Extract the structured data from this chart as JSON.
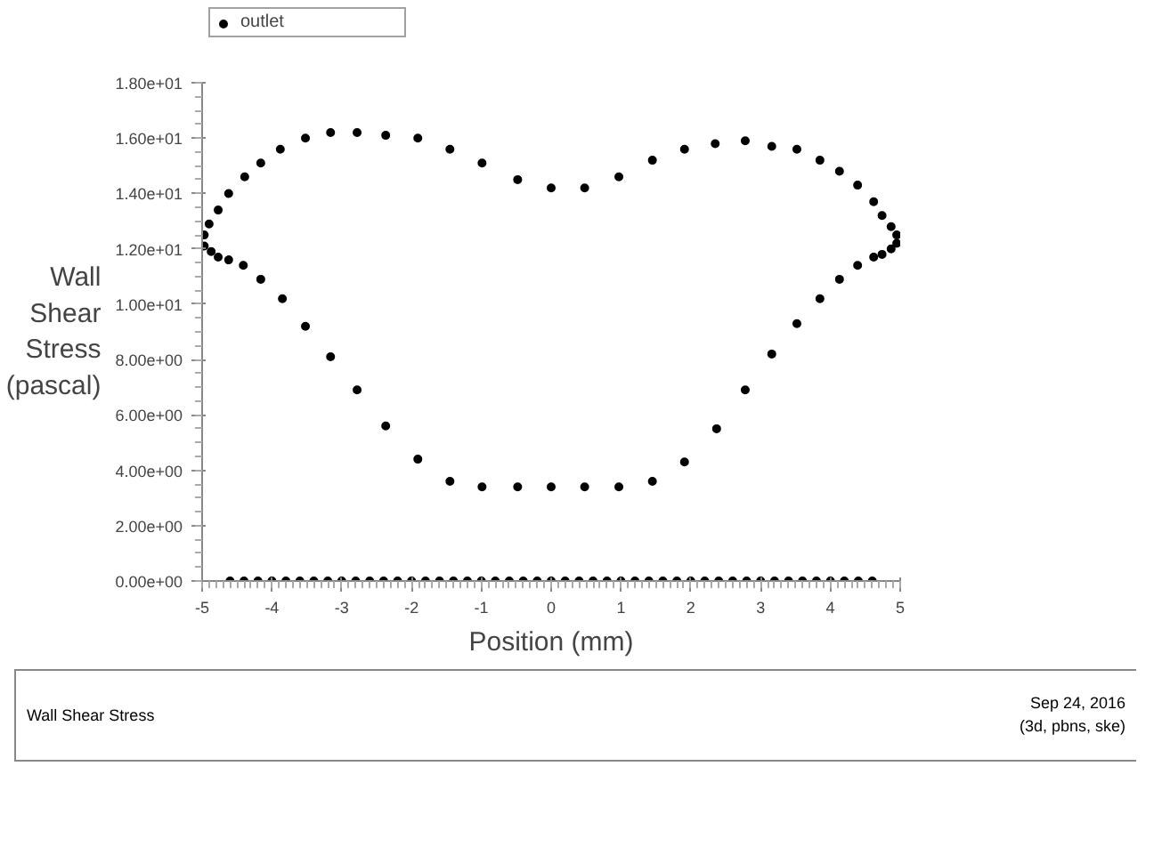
{
  "chart_data": {
    "type": "scatter",
    "xlabel": "Position (mm)",
    "ylabel": "Wall Shear Stress (pascal)",
    "xlim": [
      -5,
      5
    ],
    "ylim": [
      0,
      18
    ],
    "xticks": [
      -5,
      -4,
      -3,
      -2,
      -1,
      0,
      1,
      2,
      3,
      4,
      5
    ],
    "yticks": [
      {
        "value": 0,
        "label": "0.00e+00"
      },
      {
        "value": 2,
        "label": "2.00e+00"
      },
      {
        "value": 4,
        "label": "4.00e+00"
      },
      {
        "value": 6,
        "label": "6.00e+00"
      },
      {
        "value": 8,
        "label": "8.00e+00"
      },
      {
        "value": 10,
        "label": "1.00e+01"
      },
      {
        "value": 12,
        "label": "1.20e+01"
      },
      {
        "value": 14,
        "label": "1.40e+01"
      },
      {
        "value": 16,
        "label": "1.60e+01"
      },
      {
        "value": 18,
        "label": "1.80e+01"
      }
    ],
    "grid": false,
    "legend": "top left",
    "marker": "circle",
    "annotations": [
      "Wall Shear Stress",
      "Sep 24, 2016",
      "(3d, pbns, ske)"
    ],
    "series": [
      {
        "name": "outlet",
        "color": "#000000",
        "x": [
          -4.97,
          -4.9,
          -4.77,
          -4.62,
          -4.39,
          -4.16,
          -3.88,
          -3.52,
          -3.16,
          -2.78,
          -2.37,
          -1.91,
          -1.45,
          -0.99,
          -0.48,
          0.0,
          0.48,
          0.97,
          1.45,
          1.91,
          2.35,
          2.78,
          3.16,
          3.52,
          3.85,
          4.13,
          4.39,
          4.62,
          4.74,
          4.87,
          4.95,
          4.95,
          4.87,
          4.74,
          4.62,
          4.39,
          4.13,
          3.85,
          3.52,
          3.16,
          2.78,
          2.37,
          1.91,
          1.45,
          0.97,
          0.48,
          0.0,
          -0.48,
          -0.99,
          -1.45,
          -1.91,
          -2.37,
          -2.78,
          -3.16,
          -3.52,
          -3.85,
          -4.16,
          -4.41,
          -4.62,
          -4.77,
          -4.87,
          -4.97,
          -4.6,
          -4.4,
          -4.2,
          -4.0,
          -3.8,
          -3.6,
          -3.4,
          -3.2,
          -3.0,
          -2.8,
          -2.6,
          -2.4,
          -2.2,
          -2.0,
          -1.8,
          -1.6,
          -1.4,
          -1.2,
          -1.0,
          -0.8,
          -0.6,
          -0.4,
          -0.2,
          0.0,
          0.2,
          0.4,
          0.6,
          0.8,
          1.0,
          1.2,
          1.4,
          1.6,
          1.8,
          2.0,
          2.2,
          2.4,
          2.6,
          2.8,
          3.0,
          3.2,
          3.4,
          3.6,
          3.8,
          4.0,
          4.2,
          4.4,
          4.6
        ],
        "values": [
          12.5,
          12.9,
          13.4,
          14.0,
          14.6,
          15.1,
          15.6,
          16.0,
          16.2,
          16.2,
          16.1,
          16.0,
          15.6,
          15.1,
          14.5,
          14.2,
          14.2,
          14.6,
          15.2,
          15.6,
          15.8,
          15.9,
          15.7,
          15.6,
          15.2,
          14.8,
          14.3,
          13.7,
          13.2,
          12.8,
          12.5,
          12.2,
          12.0,
          11.8,
          11.7,
          11.4,
          10.9,
          10.2,
          9.3,
          8.2,
          6.9,
          5.5,
          4.3,
          3.6,
          3.4,
          3.4,
          3.4,
          3.4,
          3.4,
          3.6,
          4.4,
          5.6,
          6.9,
          8.1,
          9.2,
          10.2,
          10.9,
          11.4,
          11.6,
          11.7,
          11.9,
          12.1,
          0,
          0,
          0,
          0,
          0,
          0,
          0,
          0,
          0,
          0,
          0,
          0,
          0,
          0,
          0,
          0,
          0,
          0,
          0,
          0,
          0,
          0,
          0,
          0,
          0,
          0,
          0,
          0,
          0,
          0,
          0,
          0,
          0,
          0,
          0,
          0,
          0,
          0,
          0,
          0,
          0,
          0,
          0,
          0,
          0,
          0,
          0
        ]
      }
    ]
  }
}
